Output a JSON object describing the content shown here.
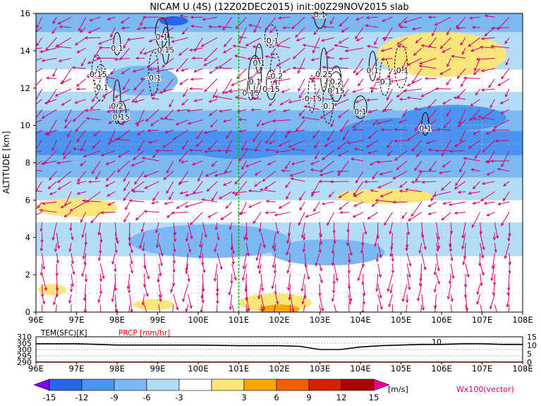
{
  "chart_data": [
    {
      "type": "heatmap",
      "title": "NICAM U (4S) (12Z02DEC2015) init:00Z29NOV2015 slab",
      "ylabel": "ALTITUDE [km]",
      "xlabel": "",
      "xlim": [
        96,
        108
      ],
      "ylim": [
        0,
        16
      ],
      "x_ticks": [
        "96E",
        "97E",
        "98E",
        "99E",
        "100E",
        "101E",
        "102E",
        "103E",
        "104E",
        "105E",
        "106E",
        "107E",
        "108E"
      ],
      "y_ticks": [
        "0",
        "2",
        "4",
        "6",
        "8",
        "10",
        "12",
        "14",
        "16"
      ],
      "marker_longitude": 101,
      "bands": [
        {
          "y0": 15.0,
          "y1": 16.0,
          "level": -9
        },
        {
          "y0": 13.0,
          "y1": 15.0,
          "level": -6
        },
        {
          "y0": 11.8,
          "y1": 13.0,
          "level": -3
        },
        {
          "y0": 10.8,
          "y1": 11.8,
          "level": -6
        },
        {
          "y0": 9.7,
          "y1": 10.8,
          "level": -9
        },
        {
          "y0": 8.4,
          "y1": 9.7,
          "level": -12
        },
        {
          "y0": 7.2,
          "y1": 8.4,
          "level": -9
        },
        {
          "y0": 6.0,
          "y1": 7.2,
          "level": -6
        },
        {
          "y0": 4.8,
          "y1": 6.0,
          "level": -3
        },
        {
          "y0": 3.0,
          "y1": 4.8,
          "level": -6
        },
        {
          "y0": 1.6,
          "y1": 3.0,
          "level": -3
        },
        {
          "y0": 0.0,
          "y1": 1.6,
          "level": -3
        }
      ],
      "patches": [
        {
          "x": 99.4,
          "y": 15.6,
          "rx": 0.35,
          "ry": 0.25,
          "level": -15
        },
        {
          "x": 105.1,
          "y": 9.1,
          "rx": 0.25,
          "ry": 0.25,
          "level": -15
        },
        {
          "x": 104.9,
          "y": 9.6,
          "rx": 1.4,
          "ry": 0.8,
          "level": -12
        },
        {
          "x": 106.3,
          "y": 10.4,
          "rx": 1.3,
          "ry": 0.7,
          "level": -12
        },
        {
          "x": 101.0,
          "y": 8.8,
          "rx": 1.2,
          "ry": 0.6,
          "level": -12
        },
        {
          "x": 97.2,
          "y": 9.0,
          "rx": 0.9,
          "ry": 0.5,
          "level": -12
        },
        {
          "x": 100.3,
          "y": 3.8,
          "rx": 2.0,
          "ry": 0.9,
          "level": -9
        },
        {
          "x": 103.2,
          "y": 3.2,
          "rx": 1.4,
          "ry": 0.7,
          "level": -9
        },
        {
          "x": 98.6,
          "y": 12.4,
          "rx": 0.9,
          "ry": 0.8,
          "level": -9
        },
        {
          "x": 101.9,
          "y": 0.5,
          "rx": 0.9,
          "ry": 0.5,
          "level": 3
        },
        {
          "x": 102.0,
          "y": 0.15,
          "rx": 0.5,
          "ry": 0.25,
          "level": 6
        },
        {
          "x": 96.4,
          "y": 1.2,
          "rx": 0.35,
          "ry": 0.3,
          "level": 3
        },
        {
          "x": 98.9,
          "y": 0.4,
          "rx": 0.5,
          "ry": 0.3,
          "level": 3
        },
        {
          "x": 106.0,
          "y": 13.8,
          "rx": 1.6,
          "ry": 1.2,
          "level": 3
        },
        {
          "x": 97.0,
          "y": 5.6,
          "rx": 1.0,
          "ry": 0.5,
          "level": 3
        },
        {
          "x": 104.6,
          "y": 6.2,
          "rx": 1.2,
          "ry": 0.4,
          "level": 3
        }
      ],
      "contour_labels": [
        {
          "x": 98.0,
          "y": 14.0,
          "text": "0.1"
        },
        {
          "x": 97.5,
          "y": 12.6,
          "text": "-0.15"
        },
        {
          "x": 97.6,
          "y": 11.9,
          "text": "-0.1"
        },
        {
          "x": 98.0,
          "y": 10.9,
          "text": "0.2"
        },
        {
          "x": 98.1,
          "y": 10.3,
          "text": "0.15"
        },
        {
          "x": 99.1,
          "y": 14.6,
          "text": "0.1"
        },
        {
          "x": 99.2,
          "y": 13.9,
          "text": "0.15"
        },
        {
          "x": 98.9,
          "y": 12.4,
          "text": "-0.1"
        },
        {
          "x": 101.8,
          "y": 14.4,
          "text": "-0.1"
        },
        {
          "x": 101.5,
          "y": 13.2,
          "text": "0.1"
        },
        {
          "x": 101.9,
          "y": 12.5,
          "text": "-0.2"
        },
        {
          "x": 101.4,
          "y": 12.2,
          "text": "0.1"
        },
        {
          "x": 101.3,
          "y": 11.6,
          "text": "0.15"
        },
        {
          "x": 101.8,
          "y": 11.8,
          "text": "0.15"
        },
        {
          "x": 103.0,
          "y": 15.8,
          "text": "0.1"
        },
        {
          "x": 103.1,
          "y": 12.6,
          "text": "0.25"
        },
        {
          "x": 103.4,
          "y": 12.2,
          "text": "0.2"
        },
        {
          "x": 103.4,
          "y": 11.7,
          "text": "0.15"
        },
        {
          "x": 102.8,
          "y": 11.3,
          "text": "-0.15"
        },
        {
          "x": 103.2,
          "y": 10.9,
          "text": "-0.1"
        },
        {
          "x": 104.0,
          "y": 10.6,
          "text": "0.1"
        },
        {
          "x": 104.3,
          "y": 12.8,
          "text": "0.1"
        },
        {
          "x": 104.6,
          "y": 12.2,
          "text": "-0.1"
        },
        {
          "x": 105.0,
          "y": 12.8,
          "text": "-0.1"
        },
        {
          "x": 105.6,
          "y": 9.7,
          "text": "0.1"
        }
      ]
    },
    {
      "type": "line",
      "title": "",
      "series": [
        {
          "name": "TEM(SFC)[K]",
          "color": "#000000",
          "x": [
            96,
            97,
            98,
            99,
            100,
            101,
            102,
            102.5,
            103,
            103.5,
            104,
            104.5,
            105,
            105.5,
            106,
            106.5,
            107,
            107.5,
            108
          ],
          "values": [
            304.5,
            304.5,
            303.5,
            303.5,
            303.5,
            303,
            303,
            302.5,
            300,
            300,
            302,
            303,
            303.5,
            304,
            304,
            304.5,
            304.5,
            304,
            304
          ]
        },
        {
          "name": "PRCP [mm/hr]",
          "color": "#ff0000",
          "x": [
            96,
            97,
            98,
            99,
            100,
            101,
            102,
            103,
            104,
            105,
            106,
            107,
            108
          ],
          "values": [
            0,
            0,
            0,
            0,
            0,
            0,
            0,
            0,
            0,
            0,
            0,
            0,
            0
          ]
        }
      ],
      "x_ticks": [
        "96E",
        "97E",
        "98E",
        "99E",
        "100E",
        "101E",
        "102E",
        "103E",
        "104E",
        "105E",
        "106E",
        "107E",
        "108E"
      ],
      "ylim_left": [
        290,
        310
      ],
      "ylim_right": [
        0,
        15
      ],
      "y_ticks_left": [
        "290",
        "295",
        "300",
        "305",
        "310"
      ],
      "y_ticks_right": [
        "0",
        "5",
        "10",
        "15"
      ],
      "xlim": [
        96,
        108
      ],
      "annotation": "10",
      "annotation_x": 106,
      "annotation_y": 305
    }
  ],
  "colorbar": {
    "ticks": [
      "-15",
      "-12",
      "-9",
      "-6",
      "-3",
      "3",
      "6",
      "9",
      "12",
      "15"
    ],
    "unit": "[m/s]",
    "colors": {
      "-18": "#8000ff",
      "-15": "#2666e8",
      "-12": "#4a94f0",
      "-9": "#7cb8f2",
      "-6": "#b3dcf7",
      "-3": "#ffffff",
      "3": "#fce579",
      "6": "#f4a800",
      "9": "#f05f00",
      "12": "#d62000",
      "15": "#a80000",
      "18": "#e8009a"
    }
  },
  "vector_label": "Wx100(vector)",
  "vector_color": "#d6006d"
}
